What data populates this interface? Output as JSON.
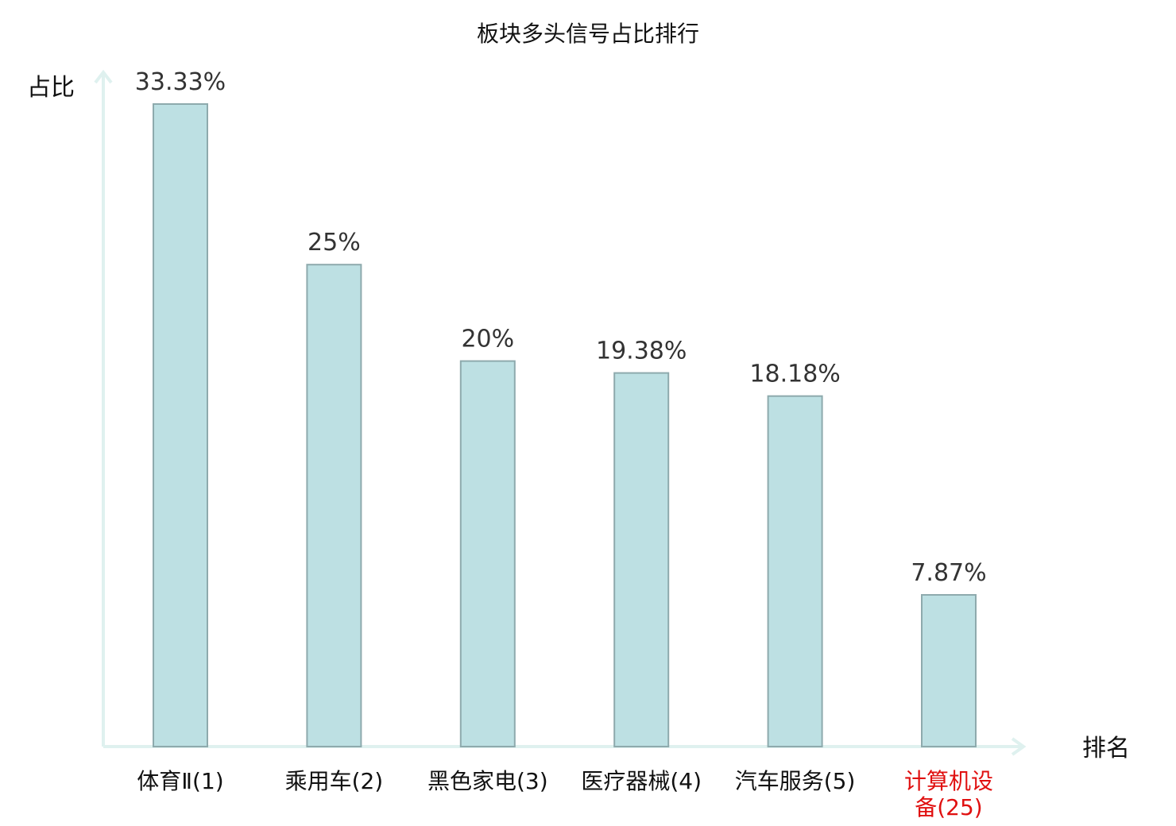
{
  "chart_data": {
    "type": "bar",
    "title": "板块多头信号占比排行",
    "ylabel": "占比",
    "xlabel": "排名",
    "categories": [
      {
        "lines": [
          "体育Ⅱ(1)"
        ],
        "highlight": false
      },
      {
        "lines": [
          "乘用车(2)"
        ],
        "highlight": false
      },
      {
        "lines": [
          "黑色家电(3)"
        ],
        "highlight": false
      },
      {
        "lines": [
          "医疗器械(4)"
        ],
        "highlight": false
      },
      {
        "lines": [
          "汽车服务(5)"
        ],
        "highlight": false
      },
      {
        "lines": [
          "计算机设",
          "备(25)"
        ],
        "highlight": true
      }
    ],
    "values": [
      33.33,
      25,
      20,
      19.38,
      18.18,
      7.87
    ],
    "value_labels": [
      "33.33%",
      "25%",
      "20%",
      "19.38%",
      "18.18%",
      "7.87%"
    ],
    "ylim": [
      0,
      34.5
    ],
    "grid": false,
    "colors": {
      "bar_fill": "#bde0e3",
      "bar_stroke": "#8eaaad",
      "axis": "#dff1ef",
      "category_text": "#111111",
      "highlight_text": "#e01010"
    }
  }
}
